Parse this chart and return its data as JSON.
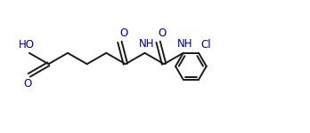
{
  "bg_color": "#ffffff",
  "line_color": "#1a1a1a",
  "text_color": "#00008b",
  "bond_lw": 1.4,
  "font_size": 8.5,
  "fig_width": 3.48,
  "fig_height": 1.5,
  "dpi": 100,
  "xlim": [
    -0.5,
    9.5
  ],
  "ylim": [
    -1.8,
    2.0
  ]
}
